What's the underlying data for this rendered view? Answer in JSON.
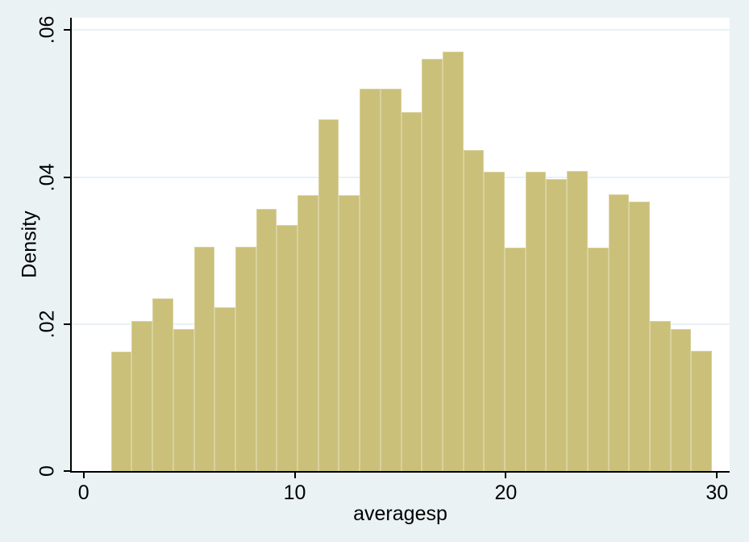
{
  "chart_data": {
    "type": "bar",
    "subtype": "histogram",
    "title": "",
    "xlabel": "averagesp",
    "ylabel": "Density",
    "legend": "none",
    "grid": "horizontal",
    "xlim": [
      -0.6,
      30.6
    ],
    "ylim": [
      0,
      0.0617
    ],
    "x_ticks": [
      0,
      10,
      20,
      30
    ],
    "x_tick_labels": [
      "0",
      "10",
      "20",
      "30"
    ],
    "y_ticks": [
      0,
      0.02,
      0.04,
      0.06
    ],
    "y_tick_labels": [
      "0",
      ".02",
      ".04",
      ".06"
    ],
    "bins": {
      "start": 1.3,
      "width": 0.9815,
      "count": 29
    },
    "densities": [
      0.0163,
      0.0204,
      0.0235,
      0.0193,
      0.0305,
      0.0223,
      0.0305,
      0.0357,
      0.0335,
      0.0376,
      0.0479,
      0.0376,
      0.052,
      0.052,
      0.0489,
      0.0561,
      0.0571,
      0.0437,
      0.0407,
      0.0304,
      0.0407,
      0.0397,
      0.0408,
      0.0304,
      0.0377,
      0.0367,
      0.0204,
      0.0193,
      0.0164
    ]
  },
  "colors": {
    "figure_bg": "#eaf2f3",
    "plot_bg": "#ffffff",
    "bar_fill": "#cac07a",
    "bar_stroke": "#d9d29e",
    "gridline": "#e9f1f6",
    "axis": "#000000",
    "text": "#000000"
  }
}
